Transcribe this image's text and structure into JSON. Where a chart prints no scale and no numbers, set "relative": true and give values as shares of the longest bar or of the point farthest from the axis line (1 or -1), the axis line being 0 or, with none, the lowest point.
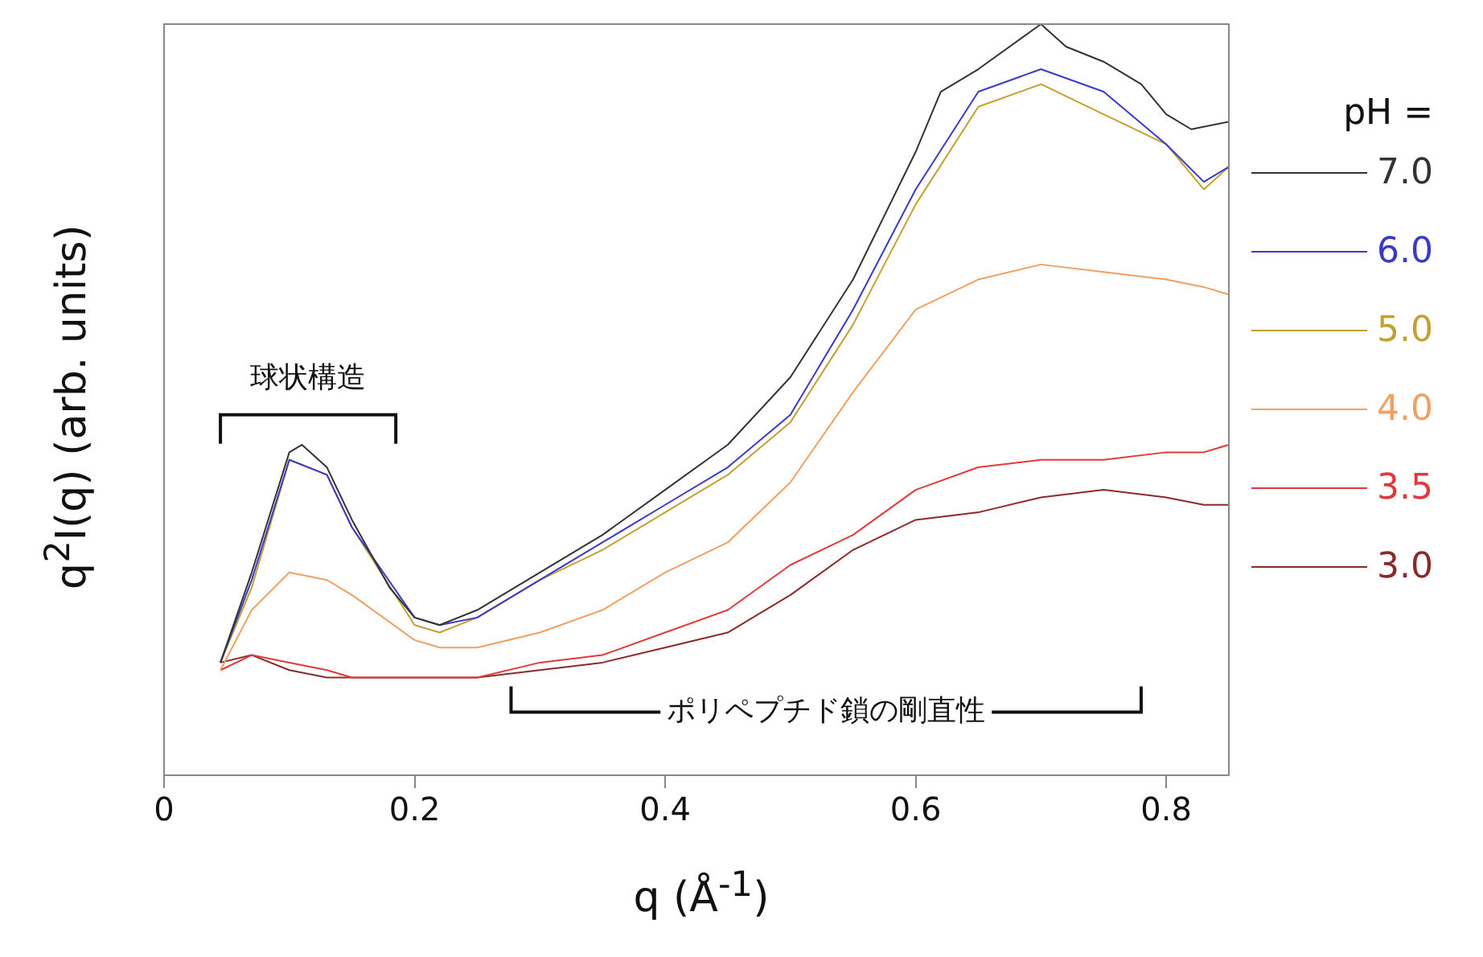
{
  "chart_data": {
    "type": "line",
    "xlabel": "q (Å$^{-1}$)",
    "ylabel": "q$^{2}$I(q) (arb. units)",
    "legend_title": "pH =",
    "legend": "right",
    "relative": true,
    "marker": "none",
    "grid": false,
    "xlim": [
      0,
      0.85
    ],
    "xticks": [
      0,
      0.2,
      0.4,
      0.6,
      0.8
    ],
    "annotations": [
      "球状構造",
      "ポリペプチド鎖の剛直性"
    ],
    "series": [
      {
        "name": "7.0",
        "color": "#333333",
        "x": [
          0.045,
          0.07,
          0.1,
          0.11,
          0.13,
          0.15,
          0.18,
          0.2,
          0.22,
          0.25,
          0.3,
          0.35,
          0.4,
          0.45,
          0.5,
          0.55,
          0.6,
          0.62,
          0.65,
          0.7,
          0.72,
          0.75,
          0.78,
          0.8,
          0.82,
          0.85
        ],
        "values": [
          0.15,
          0.27,
          0.43,
          0.44,
          0.41,
          0.34,
          0.25,
          0.21,
          0.2,
          0.22,
          0.27,
          0.32,
          0.38,
          0.44,
          0.53,
          0.66,
          0.83,
          0.91,
          0.94,
          1,
          0.97,
          0.95,
          0.92,
          0.88,
          0.86,
          0.87
        ]
      },
      {
        "name": "6.0",
        "color": "#3a3ac8",
        "x": [
          0.045,
          0.07,
          0.1,
          0.13,
          0.15,
          0.2,
          0.22,
          0.25,
          0.3,
          0.35,
          0.4,
          0.45,
          0.5,
          0.55,
          0.6,
          0.65,
          0.7,
          0.75,
          0.8,
          0.83,
          0.85
        ],
        "values": [
          0.15,
          0.26,
          0.42,
          0.4,
          0.33,
          0.21,
          0.2,
          0.21,
          0.26,
          0.31,
          0.36,
          0.41,
          0.48,
          0.62,
          0.78,
          0.91,
          0.94,
          0.91,
          0.84,
          0.79,
          0.81
        ]
      },
      {
        "name": "5.0",
        "color": "#c4a030",
        "x": [
          0.045,
          0.07,
          0.1,
          0.13,
          0.15,
          0.2,
          0.22,
          0.25,
          0.3,
          0.35,
          0.4,
          0.45,
          0.5,
          0.55,
          0.6,
          0.65,
          0.7,
          0.75,
          0.8,
          0.83,
          0.85
        ],
        "values": [
          0.15,
          0.25,
          0.42,
          0.4,
          0.33,
          0.2,
          0.19,
          0.21,
          0.26,
          0.3,
          0.35,
          0.4,
          0.47,
          0.6,
          0.76,
          0.89,
          0.92,
          0.88,
          0.84,
          0.78,
          0.81
        ]
      },
      {
        "name": "4.0",
        "color": "#f0a060",
        "x": [
          0.045,
          0.07,
          0.1,
          0.13,
          0.15,
          0.2,
          0.22,
          0.25,
          0.3,
          0.35,
          0.4,
          0.45,
          0.5,
          0.55,
          0.6,
          0.65,
          0.7,
          0.75,
          0.8,
          0.83,
          0.85
        ],
        "values": [
          0.14,
          0.22,
          0.27,
          0.26,
          0.24,
          0.18,
          0.17,
          0.17,
          0.19,
          0.22,
          0.27,
          0.31,
          0.39,
          0.51,
          0.62,
          0.66,
          0.68,
          0.67,
          0.66,
          0.65,
          0.64
        ]
      },
      {
        "name": "3.5",
        "color": "#e03a3a",
        "x": [
          0.045,
          0.07,
          0.1,
          0.13,
          0.15,
          0.2,
          0.22,
          0.25,
          0.3,
          0.35,
          0.4,
          0.45,
          0.5,
          0.55,
          0.6,
          0.65,
          0.7,
          0.75,
          0.8,
          0.83,
          0.85
        ],
        "values": [
          0.14,
          0.16,
          0.15,
          0.14,
          0.13,
          0.13,
          0.13,
          0.13,
          0.15,
          0.16,
          0.19,
          0.22,
          0.28,
          0.32,
          0.38,
          0.41,
          0.42,
          0.42,
          0.43,
          0.43,
          0.44
        ]
      },
      {
        "name": "3.0",
        "color": "#8b2a2a",
        "x": [
          0.045,
          0.07,
          0.1,
          0.13,
          0.15,
          0.2,
          0.22,
          0.25,
          0.3,
          0.35,
          0.4,
          0.45,
          0.5,
          0.55,
          0.6,
          0.65,
          0.7,
          0.75,
          0.8,
          0.83,
          0.85
        ],
        "values": [
          0.15,
          0.16,
          0.14,
          0.13,
          0.13,
          0.13,
          0.13,
          0.13,
          0.14,
          0.15,
          0.17,
          0.19,
          0.24,
          0.3,
          0.34,
          0.35,
          0.37,
          0.38,
          0.37,
          0.36,
          0.36
        ]
      }
    ]
  }
}
